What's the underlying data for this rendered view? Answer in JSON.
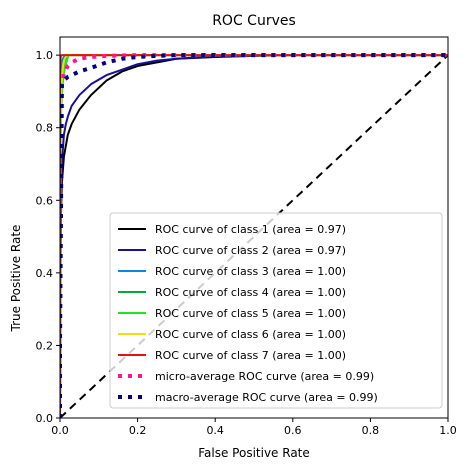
{
  "chart_data": {
    "type": "line",
    "title": "ROC Curves",
    "xlabel": "False Positive Rate",
    "ylabel": "True Positive Rate",
    "xlim": [
      0.0,
      1.0
    ],
    "ylim": [
      0.0,
      1.05
    ],
    "xticks": [
      "0.0",
      "0.2",
      "0.4",
      "0.6",
      "0.8",
      "1.0"
    ],
    "yticks": [
      "0.0",
      "0.2",
      "0.4",
      "0.6",
      "0.8",
      "1.0"
    ],
    "grid": false,
    "legend_position": "lower right",
    "chance_line": {
      "x": [
        0,
        1
      ],
      "y": [
        0,
        1
      ],
      "color": "#000000",
      "style": "dashed"
    },
    "series": [
      {
        "name": "ROC curve of class 1 (area = 0.97)",
        "color": "#000000",
        "style": "solid",
        "x": [
          0,
          0.002,
          0.005,
          0.01,
          0.02,
          0.03,
          0.05,
          0.08,
          0.12,
          0.16,
          0.2,
          0.25,
          0.3,
          0.4,
          0.5,
          0.6,
          0.8,
          1.0
        ],
        "y": [
          0,
          0.55,
          0.65,
          0.72,
          0.78,
          0.81,
          0.85,
          0.89,
          0.93,
          0.955,
          0.97,
          0.98,
          0.99,
          0.995,
          0.998,
          1.0,
          1.0,
          1.0
        ]
      },
      {
        "name": "ROC curve of class 2 (area = 0.97)",
        "color": "#1a0f99",
        "style": "solid",
        "x": [
          0,
          0.001,
          0.003,
          0.006,
          0.01,
          0.015,
          0.02,
          0.03,
          0.05,
          0.08,
          0.12,
          0.16,
          0.2,
          0.25,
          0.3,
          0.4,
          0.6,
          1.0
        ],
        "y": [
          0,
          0.4,
          0.6,
          0.72,
          0.78,
          0.81,
          0.83,
          0.86,
          0.89,
          0.92,
          0.945,
          0.96,
          0.975,
          0.985,
          0.99,
          0.997,
          1.0,
          1.0
        ]
      },
      {
        "name": "ROC curve of class 3 (area = 1.00)",
        "color": "#0a88d9",
        "style": "solid",
        "x": [
          0,
          0.0005,
          0.002,
          0.004,
          0.007,
          0.01,
          0.015,
          1.0
        ],
        "y": [
          0,
          0.9,
          0.96,
          0.98,
          0.99,
          0.995,
          1.0,
          1.0
        ]
      },
      {
        "name": "ROC curve of class 4 (area = 1.00)",
        "color": "#00a93b",
        "style": "solid",
        "x": [
          0,
          0.001,
          0.003,
          0.006,
          0.01,
          0.014,
          0.02,
          1.0
        ],
        "y": [
          0,
          0.75,
          0.88,
          0.93,
          0.96,
          0.98,
          1.0,
          1.0
        ]
      },
      {
        "name": "ROC curve of class 5 (area = 1.00)",
        "color": "#1fe61f",
        "style": "solid",
        "x": [
          0,
          0.001,
          0.003,
          0.006,
          0.01,
          0.015,
          0.022,
          1.0
        ],
        "y": [
          0,
          0.7,
          0.85,
          0.91,
          0.95,
          0.975,
          1.0,
          1.0
        ]
      },
      {
        "name": "ROC curve of class 6 (area = 1.00)",
        "color": "#ede10a",
        "style": "solid",
        "x": [
          0,
          0.001,
          0.003,
          0.005,
          0.008,
          0.012,
          0.018,
          1.0
        ],
        "y": [
          0,
          0.8,
          0.9,
          0.94,
          0.97,
          0.99,
          1.0,
          1.0
        ]
      },
      {
        "name": "ROC curve of class 7 (area = 1.00)",
        "color": "#e61010",
        "style": "solid",
        "x": [
          0,
          0.0002,
          0.001,
          0.002,
          0.004,
          1.0
        ],
        "y": [
          0,
          0.96,
          0.99,
          0.996,
          1.0,
          1.0
        ]
      },
      {
        "name": "micro-average ROC curve (area = 0.99)",
        "color": "#ff1493",
        "style": "dotted",
        "x": [
          0,
          0.0,
          0.002,
          0.005,
          0.01,
          0.02,
          0.03,
          0.05,
          0.08,
          0.12,
          0.2,
          0.4,
          1.0
        ],
        "y": [
          0,
          0.5,
          0.85,
          0.92,
          0.95,
          0.97,
          0.98,
          0.99,
          0.995,
          0.998,
          1.0,
          1.0,
          1.0
        ]
      },
      {
        "name": "macro-average ROC curve (area = 0.99)",
        "color": "#000080",
        "style": "dotted",
        "x": [
          0,
          0.0,
          0.005,
          0.01,
          0.02,
          0.03,
          0.05,
          0.08,
          0.12,
          0.16,
          0.2,
          0.25,
          0.3,
          0.4,
          0.6,
          1.0
        ],
        "y": [
          0,
          0.2,
          0.92,
          0.93,
          0.94,
          0.945,
          0.955,
          0.965,
          0.98,
          0.99,
          0.995,
          0.998,
          1.0,
          1.0,
          1.0,
          1.0
        ]
      }
    ]
  }
}
